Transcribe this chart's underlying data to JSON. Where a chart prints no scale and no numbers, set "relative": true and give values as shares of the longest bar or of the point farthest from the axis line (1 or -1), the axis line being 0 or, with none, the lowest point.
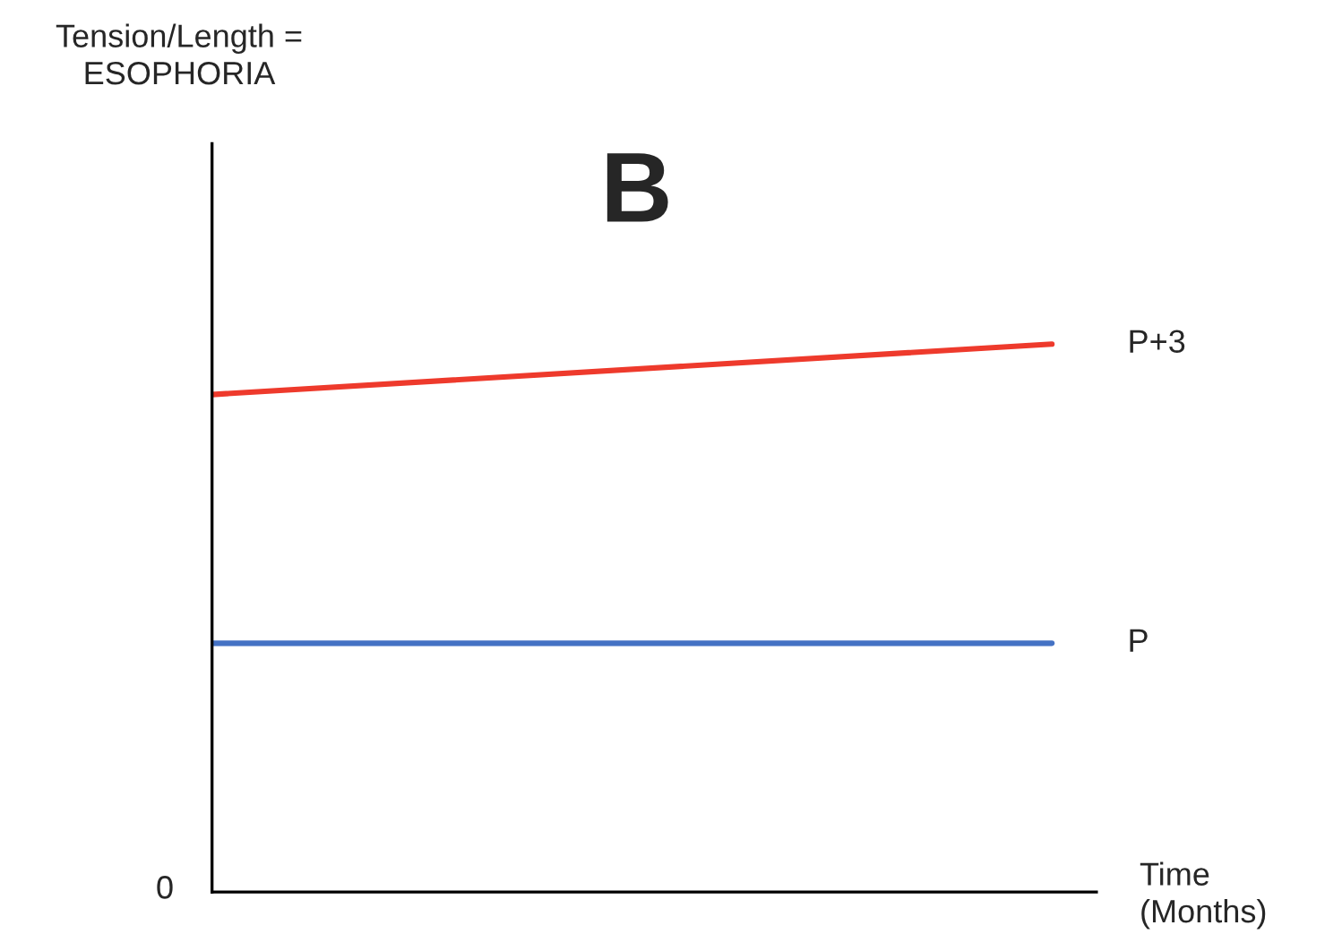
{
  "chart_data": {
    "type": "line",
    "relative": true,
    "title": "B",
    "xlabel": "Time\n(Months)",
    "annotations": [
      "Tension/Length =\nESOPHORIA",
      "0"
    ],
    "categories": [
      null,
      null
    ],
    "series": [
      {
        "name": "P+3",
        "color": "#ee3a2c",
        "values": [
          0.908,
          1
        ]
      },
      {
        "name": "P",
        "color": "#4472c4",
        "values": [
          0.454,
          0.454
        ]
      }
    ],
    "grid": false,
    "legend": false,
    "marker": "none",
    "line_style": "solid"
  }
}
